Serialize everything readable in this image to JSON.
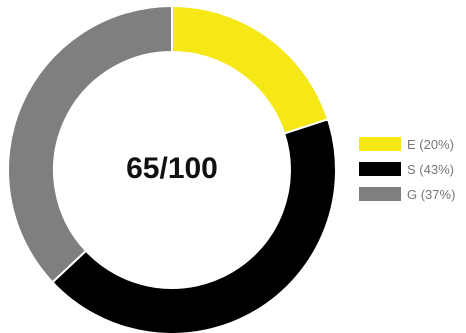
{
  "chart_data": {
    "type": "pie",
    "style": "donut",
    "center_text": "65/100",
    "slices": [
      {
        "name": "E",
        "label": "E (20%)",
        "value": 20,
        "color": "#f5e816"
      },
      {
        "name": "S",
        "label": "S (43%)",
        "value": 43,
        "color": "#000000"
      },
      {
        "name": "G",
        "label": "G (37%)",
        "value": 37,
        "color": "#7f7f7f"
      }
    ],
    "legend_placement": "right"
  }
}
